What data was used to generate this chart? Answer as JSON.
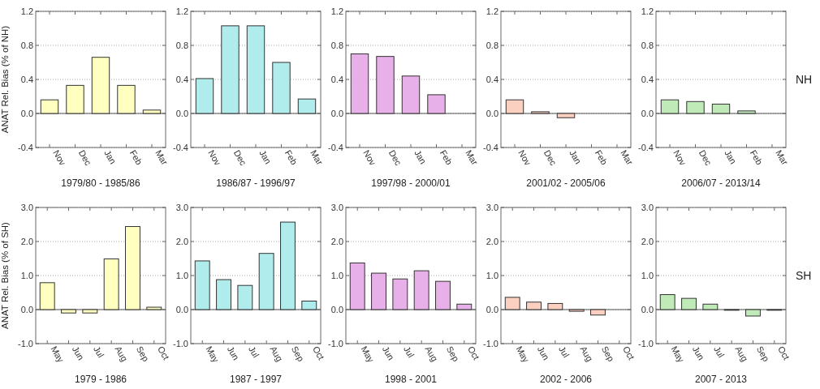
{
  "chart_data": [
    {
      "type": "bar",
      "categories": [
        "Nov",
        "Dec",
        "Jan",
        "Feb",
        "Mar"
      ],
      "values": [
        0.16,
        0.33,
        0.66,
        0.33,
        0.04
      ],
      "color": "#ffffc0",
      "ylim": [
        -0.4,
        1.2
      ],
      "yticks": [
        {
          "value": -0.4,
          "label": "-0.4"
        },
        {
          "value": 0,
          "label": "0.0"
        },
        0.4,
        0.8,
        1.2
      ],
      "grid": "y",
      "xlabel": "1979/80 - 1985/86",
      "ylabel": "ANAT Rel. Bias (% of NH)"
    },
    {
      "type": "bar",
      "categories": [
        "Nov",
        "Dec",
        "Jan",
        "Feb",
        "Mar"
      ],
      "values": [
        0.41,
        1.03,
        1.03,
        0.6,
        0.17
      ],
      "color": "#b0ecec",
      "ylim": [
        -0.4,
        1.2
      ],
      "yticks": [
        {
          "value": -0.4,
          "label": "-0.4"
        },
        {
          "value": 0,
          "label": "0.0"
        },
        0.4,
        0.8,
        1.2
      ],
      "grid": "y",
      "xlabel": "1986/87 - 1996/97"
    },
    {
      "type": "bar",
      "categories": [
        "Nov",
        "Dec",
        "Jan",
        "Feb",
        "Mar"
      ],
      "values": [
        0.7,
        0.67,
        0.44,
        0.22,
        0.0
      ],
      "color": "#e8b0e8",
      "ylim": [
        -0.4,
        1.2
      ],
      "yticks": [
        {
          "value": -0.4,
          "label": "-0.4"
        },
        {
          "value": 0,
          "label": "0.0"
        },
        0.4,
        0.8,
        1.2
      ],
      "grid": "y",
      "xlabel": "1997/98 - 2000/01"
    },
    {
      "type": "bar",
      "categories": [
        "Nov",
        "Dec",
        "Jan",
        "Feb",
        "Mar"
      ],
      "values": [
        0.16,
        0.02,
        -0.05,
        0.0,
        0.0
      ],
      "color": "#fcd0c0",
      "ylim": [
        -0.4,
        1.2
      ],
      "yticks": [
        {
          "value": -0.4,
          "label": "-0.4"
        },
        {
          "value": 0,
          "label": "0.0"
        },
        0.4,
        0.8,
        1.2
      ],
      "grid": "y",
      "xlabel": "2001/02 - 2005/06"
    },
    {
      "type": "bar",
      "categories": [
        "Nov",
        "Dec",
        "Jan",
        "Feb",
        "Mar"
      ],
      "values": [
        0.16,
        0.14,
        0.11,
        0.03,
        0.0
      ],
      "color": "#c0eab8",
      "ylim": [
        -0.4,
        1.2
      ],
      "yticks": [
        {
          "value": -0.4,
          "label": "-0.4"
        },
        {
          "value": 0,
          "label": "0.0"
        },
        0.4,
        0.8,
        1.2
      ],
      "grid": "y",
      "xlabel": "2006/07 - 2013/14",
      "annotations": [
        "NH"
      ]
    },
    {
      "type": "bar",
      "categories": [
        "May",
        "Jun",
        "Jul",
        "Aug",
        "Sep",
        "Oct"
      ],
      "values": [
        0.79,
        -0.1,
        -0.1,
        1.49,
        2.44,
        0.07
      ],
      "color": "#ffffc0",
      "ylim": [
        -1,
        3
      ],
      "yticks": [
        {
          "value": -1,
          "label": "-1.0"
        },
        {
          "value": 0,
          "label": "0.0"
        },
        {
          "value": 1,
          "label": "1.0"
        },
        {
          "value": 2,
          "label": "2.0"
        },
        {
          "value": 3,
          "label": "3.0"
        }
      ],
      "grid": "y",
      "xlabel": "1979 - 1986",
      "ylabel": "ANAT Rel. Bias (% of SH)"
    },
    {
      "type": "bar",
      "categories": [
        "May",
        "Jun",
        "Jul",
        "Aug",
        "Sep",
        "Oct"
      ],
      "values": [
        1.43,
        0.88,
        0.71,
        1.65,
        2.57,
        0.25
      ],
      "color": "#b0ecec",
      "ylim": [
        -1,
        3
      ],
      "yticks": [
        {
          "value": -1,
          "label": "-1.0"
        },
        {
          "value": 0,
          "label": "0.0"
        },
        {
          "value": 1,
          "label": "1.0"
        },
        {
          "value": 2,
          "label": "2.0"
        },
        {
          "value": 3,
          "label": "3.0"
        }
      ],
      "grid": "y",
      "xlabel": "1987 - 1997"
    },
    {
      "type": "bar",
      "categories": [
        "May",
        "Jun",
        "Jul",
        "Aug",
        "Sep",
        "Oct"
      ],
      "values": [
        1.37,
        1.07,
        0.9,
        1.14,
        0.83,
        0.16
      ],
      "color": "#e8b0e8",
      "ylim": [
        -1,
        3
      ],
      "yticks": [
        {
          "value": -1,
          "label": "-1.0"
        },
        {
          "value": 0,
          "label": "0.0"
        },
        {
          "value": 1,
          "label": "1.0"
        },
        {
          "value": 2,
          "label": "2.0"
        },
        {
          "value": 3,
          "label": "3.0"
        }
      ],
      "grid": "y",
      "xlabel": "1998 - 2001"
    },
    {
      "type": "bar",
      "categories": [
        "May",
        "Jun",
        "Jul",
        "Aug",
        "Sep",
        "Oct"
      ],
      "values": [
        0.36,
        0.22,
        0.18,
        -0.05,
        -0.16,
        0.0
      ],
      "color": "#fcd0c0",
      "ylim": [
        -1,
        3
      ],
      "yticks": [
        {
          "value": -1,
          "label": "-1.0"
        },
        {
          "value": 0,
          "label": "0.0"
        },
        {
          "value": 1,
          "label": "1.0"
        },
        {
          "value": 2,
          "label": "2.0"
        },
        {
          "value": 3,
          "label": "3.0"
        }
      ],
      "grid": "y",
      "xlabel": "2002 - 2006"
    },
    {
      "type": "bar",
      "categories": [
        "May",
        "Jun",
        "Jul",
        "Aug",
        "Sep",
        "Oct"
      ],
      "values": [
        0.44,
        0.33,
        0.16,
        -0.02,
        -0.19,
        -0.02
      ],
      "color": "#c0eab8",
      "ylim": [
        -1,
        3
      ],
      "yticks": [
        {
          "value": -1,
          "label": "-1.0"
        },
        {
          "value": 0,
          "label": "0.0"
        },
        {
          "value": 1,
          "label": "1.0"
        },
        {
          "value": 2,
          "label": "2.0"
        },
        {
          "value": 3,
          "label": "3.0"
        }
      ],
      "grid": "y",
      "xlabel": "2007 - 2013",
      "annotations": [
        "SH"
      ]
    }
  ]
}
